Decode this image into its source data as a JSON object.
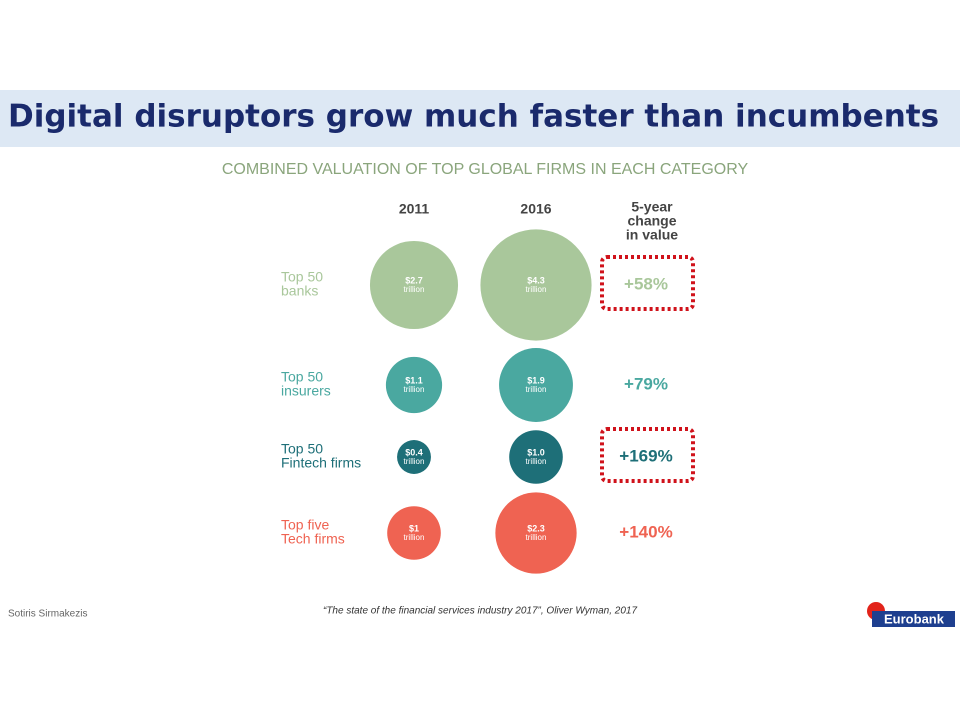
{
  "chart_data": {
    "type": "bubble",
    "title": "Digital disruptors grow much faster than incumbents",
    "subtitle": "COMBINED VALUATION OF TOP GLOBAL FIRMS IN EACH CATEGORY",
    "columns": [
      "2011",
      "2016"
    ],
    "change_header": [
      "5-year",
      "change",
      "in value"
    ],
    "unit": "trillion",
    "rows": [
      {
        "label": [
          "Top 50",
          "banks"
        ],
        "color": "#a9c79b",
        "values": [
          2.7,
          4.3
        ],
        "value_labels": [
          "$2.7",
          "$4.3"
        ],
        "change": "+58%",
        "highlight": true
      },
      {
        "label": [
          "Top 50",
          "insurers"
        ],
        "color": "#4aa8a0",
        "values": [
          1.1,
          1.9
        ],
        "value_labels": [
          "$1.1",
          "$1.9"
        ],
        "change": "+79%",
        "highlight": false
      },
      {
        "label": [
          "Top 50",
          "Fintech firms"
        ],
        "color": "#1e6f78",
        "values": [
          0.4,
          1.0
        ],
        "value_labels": [
          "$0.4",
          "$1.0"
        ],
        "change": "+169%",
        "highlight": true
      },
      {
        "label": [
          "Top five",
          "Tech firms"
        ],
        "color": "#ef6352",
        "values": [
          1,
          2.3
        ],
        "value_labels": [
          "$1",
          "$2.3"
        ],
        "change": "+140%",
        "highlight": false
      }
    ],
    "author": "Sotiris Sirmakezis",
    "source": "“The state of the financial services industry 2017”,  Oliver Wyman, 2017",
    "logo": "Eurobank"
  }
}
